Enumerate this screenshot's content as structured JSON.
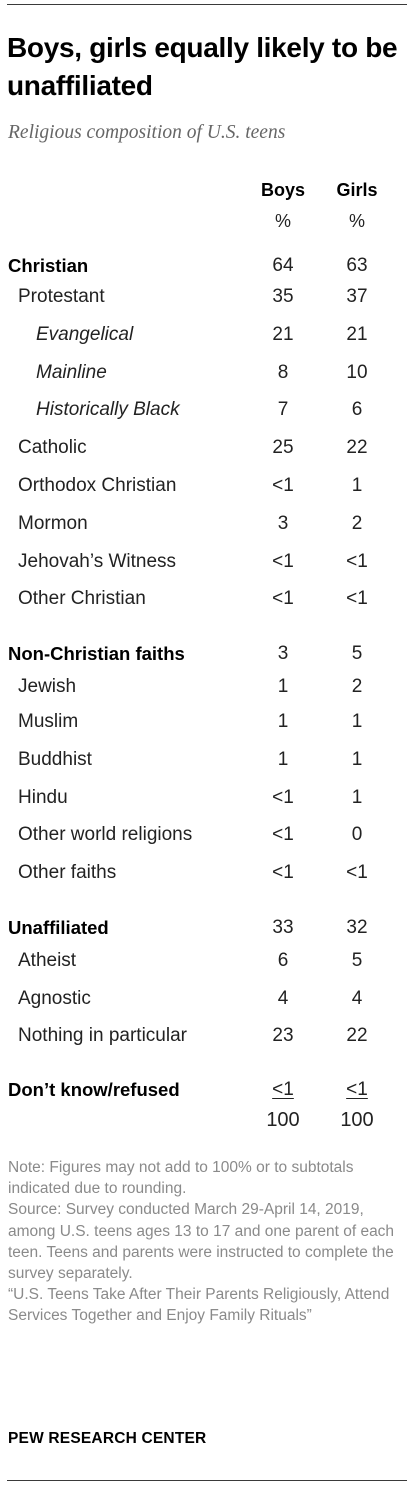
{
  "title": "Boys, girls equally likely to be unaffiliated",
  "subtitle": "Religious composition of U.S. teens",
  "columns": {
    "boys": "Boys",
    "girls": "Girls",
    "unit": "%"
  },
  "chart_data": {
    "type": "table",
    "title": "Boys, girls equally likely to be unaffiliated",
    "subtitle": "Religious composition of U.S. teens",
    "columns": [
      "Boys",
      "Girls"
    ],
    "unit": "%",
    "rows": [
      {
        "label": "Christian",
        "level": 0,
        "boys": "64",
        "girls": "63"
      },
      {
        "label": "Protestant",
        "level": 1,
        "boys": "35",
        "girls": "37"
      },
      {
        "label": "Evangelical",
        "level": 2,
        "boys": "21",
        "girls": "21"
      },
      {
        "label": "Mainline",
        "level": 2,
        "boys": "8",
        "girls": "10"
      },
      {
        "label": "Historically Black",
        "level": 2,
        "boys": "7",
        "girls": "6"
      },
      {
        "label": "Catholic",
        "level": 1,
        "boys": "25",
        "girls": "22"
      },
      {
        "label": "Orthodox Christian",
        "level": 1,
        "boys": "<1",
        "girls": "1"
      },
      {
        "label": "Mormon",
        "level": 1,
        "boys": "3",
        "girls": "2"
      },
      {
        "label": "Jehovah’s Witness",
        "level": 1,
        "boys": "<1",
        "girls": "<1"
      },
      {
        "label": "Other Christian",
        "level": 1,
        "boys": "<1",
        "girls": "<1"
      },
      {
        "label": "Non-Christian faiths",
        "level": 0,
        "boys": "3",
        "girls": "5"
      },
      {
        "label": "Jewish",
        "level": 1,
        "boys": "1",
        "girls": "2"
      },
      {
        "label": "Muslim",
        "level": 1,
        "boys": "1",
        "girls": "1"
      },
      {
        "label": "Buddhist",
        "level": 1,
        "boys": "1",
        "girls": "1"
      },
      {
        "label": "Hindu",
        "level": 1,
        "boys": "<1",
        "girls": "1"
      },
      {
        "label": "Other world religions",
        "level": 1,
        "boys": "<1",
        "girls": "0"
      },
      {
        "label": "Other faiths",
        "level": 1,
        "boys": "<1",
        "girls": "<1"
      },
      {
        "label": "Unaffiliated",
        "level": 0,
        "boys": "33",
        "girls": "32"
      },
      {
        "label": "Atheist",
        "level": 1,
        "boys": "6",
        "girls": "5"
      },
      {
        "label": "Agnostic",
        "level": 1,
        "boys": "4",
        "girls": "4"
      },
      {
        "label": "Nothing in particular",
        "level": 1,
        "boys": "23",
        "girls": "22"
      },
      {
        "label": "Don’t know/refused",
        "level": 0,
        "boys": "<1",
        "girls": "<1"
      }
    ],
    "totals": {
      "boys": "100",
      "girls": "100"
    }
  },
  "note": "Note: Figures may not add to 100% or to subtotals indicated due to rounding.\nSource: Survey conducted March 29-April 14, 2019, among U.S. teens ages 13 to 17 and one parent of each teen. Teens and parents were instructed to complete the survey separately.\n“U.S. Teens Take After Their Parents Religiously, Attend Services Together and Enjoy Family Rituals”",
  "source": "PEW RESEARCH CENTER",
  "colors": {
    "text": "#222222",
    "muted": "#8a8a8a",
    "subtitle": "#666666",
    "rule": "#3a3a3a"
  }
}
